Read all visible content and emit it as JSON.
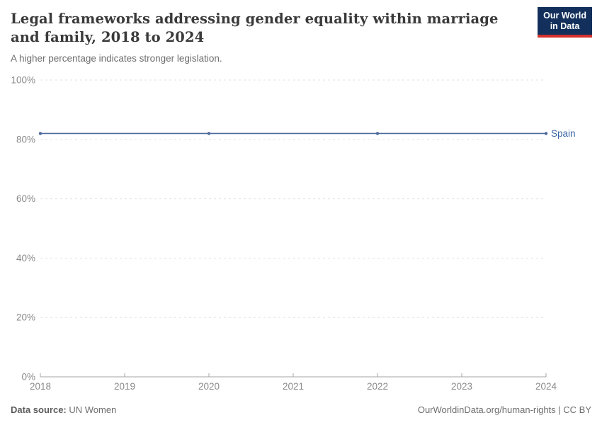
{
  "header": {
    "title": "Legal frameworks addressing gender equality within marriage and family, 2018 to 2024",
    "subtitle": "A higher percentage indicates stronger legislation.",
    "logo": {
      "line1": "Our World",
      "line2": "in Data"
    }
  },
  "chart_data": {
    "type": "line",
    "title": "Legal frameworks addressing gender equality within marriage and family, 2018 to 2024",
    "subtitle": "A higher percentage indicates stronger legislation.",
    "series": [
      {
        "name": "Spain",
        "x": [
          2018,
          2020,
          2022,
          2024
        ],
        "values": [
          82,
          82,
          82,
          82
        ]
      }
    ],
    "x_ticks": [
      2018,
      2019,
      2020,
      2021,
      2022,
      2023,
      2024
    ],
    "x_tick_labels": [
      "2018",
      "2019",
      "2020",
      "2021",
      "2022",
      "2023",
      "2024"
    ],
    "y_ticks": [
      0,
      20,
      40,
      60,
      80,
      100
    ],
    "y_tick_labels": [
      "0%",
      "20%",
      "40%",
      "60%",
      "80%",
      "100%"
    ],
    "xlim": [
      2018,
      2024
    ],
    "ylim": [
      0,
      100
    ],
    "grid": "horizontal-dashed",
    "legend_position": "end-of-line-label",
    "entity_label": "Spain"
  },
  "colors": {
    "line": "#4c6a9c",
    "entity_label": "#3d66a4",
    "grid": "#e2e2e2",
    "axis": "#a5a5a5",
    "tick_label": "#8a8a8a",
    "logo_bg": "#12305b",
    "logo_red": "#d3302e"
  },
  "footer": {
    "source_label": "Data source:",
    "source_value": "UN Women",
    "right_text": "OurWorldinData.org/human-rights | CC BY"
  }
}
